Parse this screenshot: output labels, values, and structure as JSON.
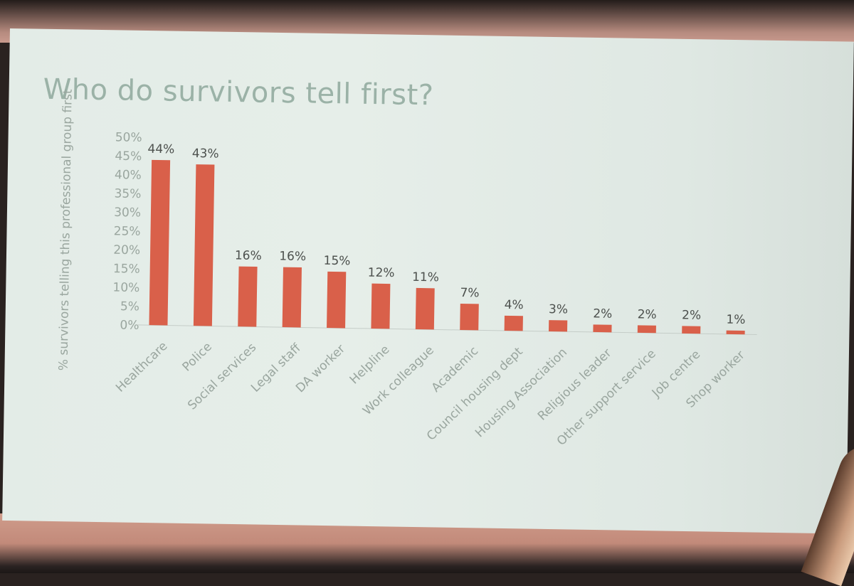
{
  "title": "Who do survivors tell first?",
  "colors": {
    "bar": "#d9604a",
    "text": "#9aa69f",
    "label_text": "#4d514e",
    "slide_bg": "#e3ece7"
  },
  "chart_data": {
    "type": "bar",
    "title": "Who do survivors tell first?",
    "ylabel": "% survivors telling this professional group first",
    "xlabel": "",
    "ylim": [
      0,
      50
    ],
    "yticks": [
      "0%",
      "5%",
      "10%",
      "15%",
      "20%",
      "25%",
      "30%",
      "35%",
      "40%",
      "45%",
      "50%"
    ],
    "categories": [
      "Healthcare",
      "Police",
      "Social services",
      "Legal staff",
      "DA worker",
      "Helpline",
      "Work colleague",
      "Academic",
      "Council housing dept",
      "Housing Association",
      "Religious leader",
      "Other support service",
      "Job centre",
      "Shop worker"
    ],
    "values": [
      44,
      43,
      16,
      16,
      15,
      12,
      11,
      7,
      4,
      3,
      2,
      2,
      2,
      1
    ],
    "data_labels": [
      "44%",
      "43%",
      "16%",
      "16%",
      "15%",
      "12%",
      "11%",
      "7%",
      "4%",
      "3%",
      "2%",
      "2%",
      "2%",
      "1%"
    ],
    "grid": false,
    "legend": "none"
  }
}
